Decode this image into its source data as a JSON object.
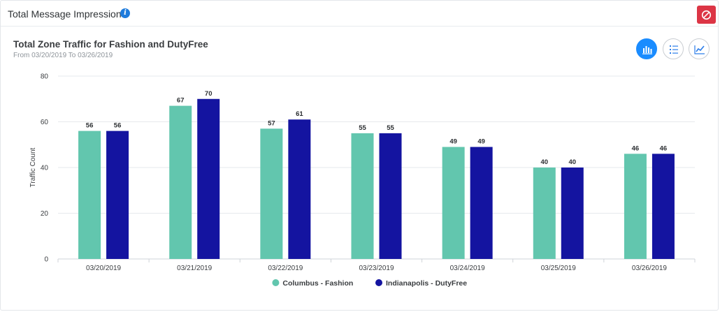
{
  "panel": {
    "title": "Total Message Impression",
    "info_icon": "info-icon",
    "disable_icon": "ban-icon",
    "disable_color": "#dc3545"
  },
  "view_buttons": [
    {
      "name": "bar-chart-view",
      "icon": "bar-chart-icon",
      "active": true
    },
    {
      "name": "list-view",
      "icon": "list-icon",
      "active": false
    },
    {
      "name": "line-chart-view",
      "icon": "line-chart-icon",
      "active": false
    }
  ],
  "chart_data": {
    "type": "bar",
    "title": "Total Zone Traffic for Fashion and DutyFree",
    "subtitle": "From 03/20/2019 To 03/26/2019",
    "xlabel": "",
    "ylabel": "Traffic Count",
    "ylim": [
      0,
      80
    ],
    "yticks": [
      0,
      20,
      40,
      60,
      80
    ],
    "grid": true,
    "legend_position": "bottom-center",
    "categories": [
      "03/20/2019",
      "03/21/2019",
      "03/22/2019",
      "03/23/2019",
      "03/24/2019",
      "03/25/2019",
      "03/26/2019"
    ],
    "series": [
      {
        "name": "Columbus - Fashion",
        "color": "#62c6ae",
        "values": [
          56,
          67,
          57,
          55,
          49,
          40,
          46
        ]
      },
      {
        "name": "Indianapolis - DutyFree",
        "color": "#1414a0",
        "values": [
          56,
          70,
          61,
          55,
          49,
          40,
          46
        ]
      }
    ]
  }
}
